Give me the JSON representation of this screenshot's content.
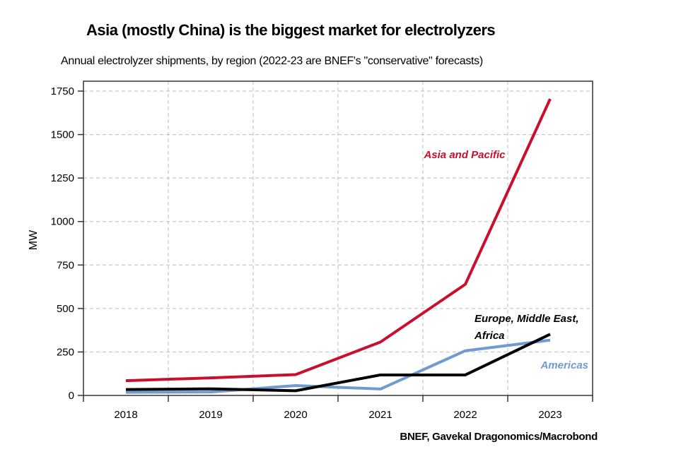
{
  "chart_data": {
    "type": "line",
    "title": "Asia (mostly China) is the biggest market for electrolyzers",
    "subtitle": "Annual electrolyzer shipments, by region (2022-23 are BNEF's \"conservative\" forecasts)",
    "source": "BNEF, Gavekal Dragonomics/Macrobond",
    "xlabel": "",
    "ylabel": "MW",
    "categories": [
      "2018",
      "2019",
      "2020",
      "2021",
      "2022",
      "2023"
    ],
    "yticks": [
      0,
      250,
      500,
      750,
      1000,
      1250,
      1500,
      1750
    ],
    "ylim": [
      0,
      1800
    ],
    "grid": true,
    "series": [
      {
        "name": "Asia and Pacific",
        "color": "#C8102E",
        "values": [
          85,
          101,
          120,
          307,
          639,
          1705
        ]
      },
      {
        "name": "Europe, Middle East, Africa",
        "label_lines": [
          "Europe, Middle East,",
          "Africa"
        ],
        "color": "#000000",
        "values": [
          34,
          38,
          27,
          118,
          118,
          352
        ]
      },
      {
        "name": "Americas",
        "color": "#6F9BD1",
        "values": [
          18,
          20,
          57,
          37,
          257,
          318
        ]
      }
    ]
  }
}
